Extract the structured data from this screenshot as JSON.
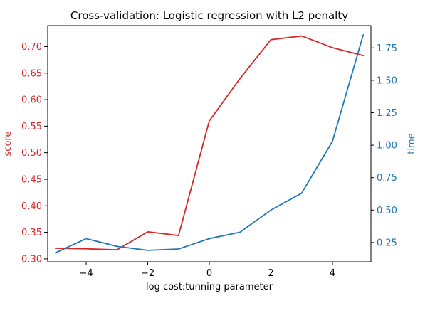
{
  "chart_data": {
    "type": "line",
    "title": "Cross-validation: Logistic regression with L2 penalty",
    "xlabel": "log cost:tunning parameter",
    "ylabel_left": "score",
    "ylabel_right": "time",
    "x": [
      -5,
      -4,
      -3,
      -2,
      -1,
      0,
      1,
      2,
      3,
      4,
      5
    ],
    "xlim": [
      -5.25,
      5.25
    ],
    "xticks": [
      -4,
      -2,
      0,
      2,
      4
    ],
    "xtick_labels": [
      "−4",
      "−2",
      "0",
      "2",
      "4"
    ],
    "left_axis": {
      "ylim": [
        0.2945,
        0.7395
      ],
      "ticks": [
        0.3,
        0.35,
        0.4,
        0.45,
        0.5,
        0.55,
        0.6,
        0.65,
        0.7
      ],
      "tick_labels": [
        "0.30",
        "0.35",
        "0.40",
        "0.45",
        "0.50",
        "0.55",
        "0.60",
        "0.65",
        "0.70"
      ],
      "color": "#d62728"
    },
    "right_axis": {
      "ylim": [
        0.1015,
        1.9215
      ],
      "ticks": [
        0.25,
        0.5,
        0.75,
        1.0,
        1.25,
        1.5,
        1.75
      ],
      "tick_labels": [
        "0.25",
        "0.50",
        "0.75",
        "1.00",
        "1.25",
        "1.50",
        "1.75"
      ],
      "color": "#1f77b4"
    },
    "series": [
      {
        "axis": "left",
        "color": "#d62728",
        "values": [
          0.32,
          0.319,
          0.317,
          0.351,
          0.344,
          0.56,
          0.64,
          0.713,
          0.72,
          0.698,
          0.683
        ]
      },
      {
        "axis": "right",
        "color": "#1f77b4",
        "values": [
          0.17,
          0.28,
          0.22,
          0.19,
          0.2,
          0.28,
          0.33,
          0.5,
          0.63,
          1.03,
          1.85
        ]
      }
    ]
  }
}
